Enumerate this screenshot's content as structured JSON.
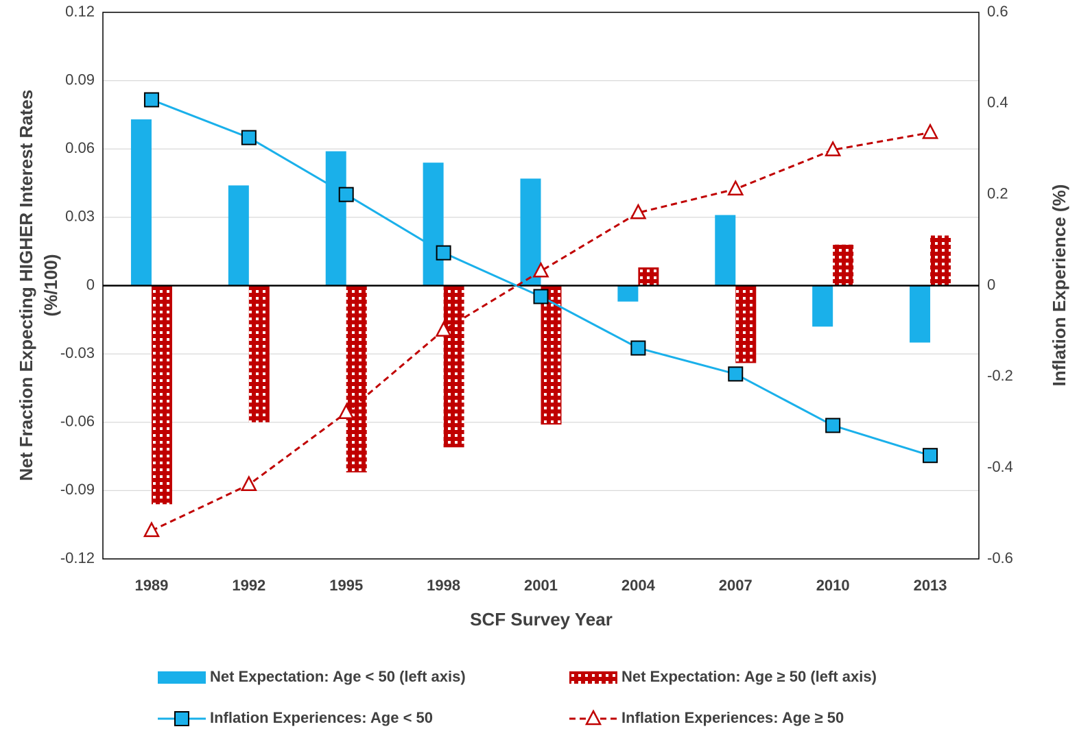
{
  "chart_data": {
    "type": "bar-line-combo",
    "x_label": "SCF Survey Year",
    "y_label": [
      "Net Fraction Expecting HIGHER Interest Rates",
      "(%/100)"
    ],
    "y2_label": "Inflation Experience (%)",
    "categories": [
      "1989",
      "1992",
      "1995",
      "1998",
      "2001",
      "2004",
      "2007",
      "2010",
      "2013"
    ],
    "ylim": [
      -0.12,
      0.12
    ],
    "yticks": [
      -0.12,
      -0.09,
      -0.06,
      -0.03,
      0,
      0.03,
      0.06,
      0.09,
      0.12
    ],
    "y2lim": [
      -0.6,
      0.6
    ],
    "y2ticks": [
      -0.6,
      -0.4,
      -0.2,
      0,
      0.2,
      0.4,
      0.6
    ],
    "grid": true,
    "legend": "bottom",
    "series": [
      {
        "name": "Net Expectation: Age < 50 (left axis)",
        "type": "bar",
        "color": "#1ab0ea",
        "pattern": "solid",
        "values": [
          0.073,
          0.044,
          0.059,
          0.054,
          0.047,
          -0.007,
          0.031,
          -0.018,
          -0.025
        ]
      },
      {
        "name": "Net Expectation: Age ≥ 50 (left axis)",
        "type": "bar",
        "color": "#c00000",
        "pattern": "dots",
        "values": [
          -0.096,
          -0.06,
          -0.082,
          -0.071,
          -0.061,
          0.008,
          -0.034,
          0.018,
          0.022
        ]
      },
      {
        "name": "Inflation Experiences: Age < 50",
        "type": "line",
        "axis": "y2",
        "color": "#1ab0ea",
        "dash": "solid",
        "marker": "square",
        "values": [
          0.408,
          0.325,
          0.2,
          0.072,
          -0.024,
          -0.137,
          -0.194,
          -0.307,
          -0.373
        ]
      },
      {
        "name": "Inflation Experiences: Age ≥ 50",
        "type": "line",
        "axis": "y2",
        "color": "#c00000",
        "dash": "dashed",
        "marker": "triangle",
        "values": [
          -0.538,
          -0.437,
          -0.279,
          -0.098,
          0.032,
          0.16,
          0.212,
          0.298,
          0.336
        ]
      }
    ]
  }
}
